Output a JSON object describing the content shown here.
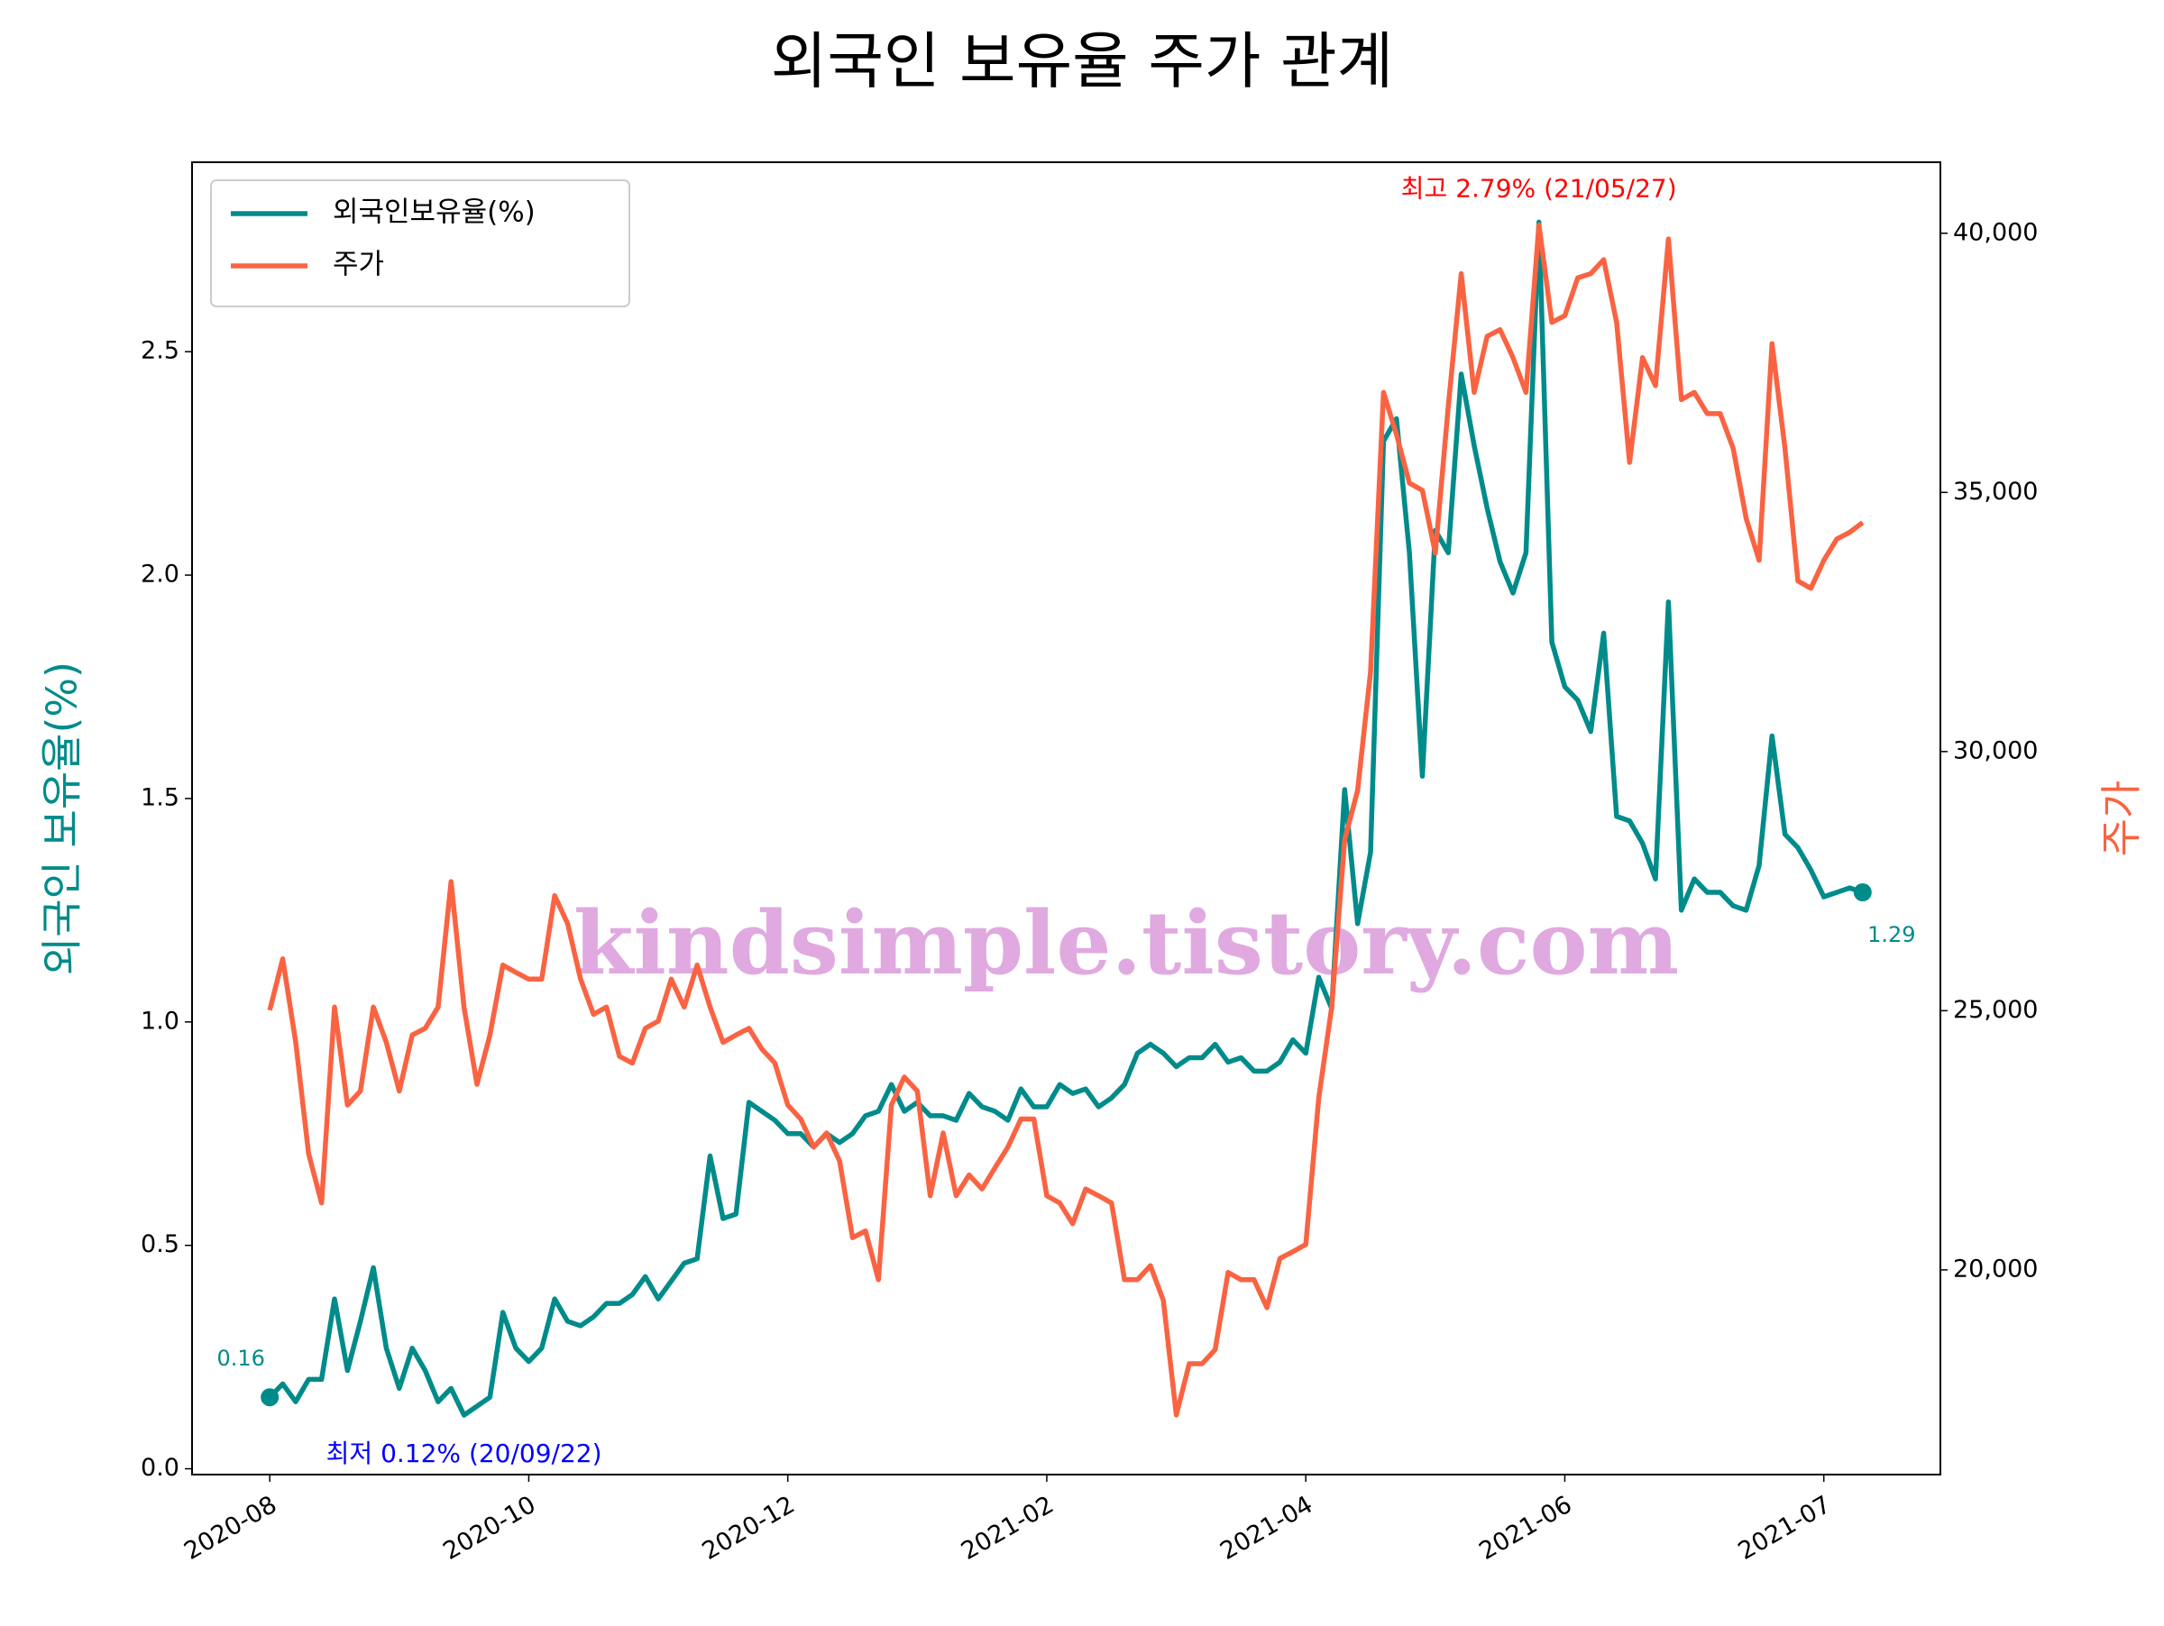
{
  "chart_data": {
    "type": "line",
    "title": "외국인 보유율 주가 관계",
    "ylabel": "외국인 보유율(%)",
    "y2label": "주가",
    "watermark": "kindsimple.tistory.com",
    "legend": "upper left",
    "grid": false,
    "categories": [
      "2020-08",
      null,
      null,
      null,
      null,
      null,
      null,
      null,
      null,
      null,
      null,
      null,
      null,
      null,
      null,
      null,
      null,
      null,
      null,
      null,
      "2020-10",
      null,
      null,
      null,
      null,
      null,
      null,
      null,
      null,
      null,
      null,
      null,
      null,
      null,
      null,
      null,
      null,
      null,
      null,
      null,
      "2020-12",
      null,
      null,
      null,
      null,
      null,
      null,
      null,
      null,
      null,
      null,
      null,
      null,
      null,
      null,
      null,
      null,
      null,
      null,
      null,
      "2021-02",
      null,
      null,
      null,
      null,
      null,
      null,
      null,
      null,
      null,
      null,
      null,
      null,
      null,
      null,
      null,
      null,
      null,
      null,
      null,
      "2021-04",
      null,
      null,
      null,
      null,
      null,
      null,
      null,
      null,
      null,
      null,
      null,
      null,
      null,
      null,
      null,
      null,
      null,
      null,
      null,
      "2021-06",
      null,
      null,
      null,
      null,
      null,
      null,
      null,
      null,
      null,
      null,
      null,
      null,
      null,
      null,
      null,
      null,
      null,
      null,
      null,
      "2021-07",
      null,
      null,
      null
    ],
    "ylim": [
      -0.013,
      2.924
    ],
    "yticks": [
      {
        "value": 0,
        "label": "0.0"
      },
      0.5,
      {
        "value": 1,
        "label": "1.0"
      },
      1.5,
      {
        "value": 2,
        "label": "2.0"
      },
      2.5
    ],
    "y2lim": [
      16050,
      41370
    ],
    "y2ticks": [
      {
        "value": 20000,
        "label": "20,000"
      },
      {
        "value": 25000,
        "label": "25,000"
      },
      {
        "value": 30000,
        "label": "30,000"
      },
      {
        "value": 35000,
        "label": "35,000"
      },
      {
        "value": 40000,
        "label": "40,000"
      }
    ],
    "series": [
      {
        "name": "외국인보유율(%)",
        "color": "#008b8b",
        "axis": "y",
        "values": [
          0.16,
          0.19,
          0.15,
          0.2,
          0.2,
          0.38,
          0.22,
          0.33,
          0.45,
          0.27,
          0.18,
          0.27,
          0.22,
          0.15,
          0.18,
          0.12,
          0.14,
          0.16,
          0.35,
          0.27,
          0.24,
          0.27,
          0.38,
          0.33,
          0.32,
          0.34,
          0.37,
          0.37,
          0.39,
          0.43,
          0.38,
          0.42,
          0.46,
          0.47,
          0.7,
          0.56,
          0.57,
          0.82,
          0.8,
          0.78,
          0.75,
          0.75,
          0.72,
          0.75,
          0.73,
          0.75,
          0.79,
          0.8,
          0.86,
          0.8,
          0.82,
          0.79,
          0.79,
          0.78,
          0.84,
          0.81,
          0.8,
          0.78,
          0.85,
          0.81,
          0.81,
          0.86,
          0.84,
          0.85,
          0.81,
          0.83,
          0.86,
          0.93,
          0.95,
          0.93,
          0.9,
          0.92,
          0.92,
          0.95,
          0.91,
          0.92,
          0.89,
          0.89,
          0.91,
          0.96,
          0.93,
          1.1,
          1.03,
          1.52,
          1.22,
          1.38,
          2.3,
          2.35,
          2.05,
          1.55,
          2.1,
          2.05,
          2.45,
          2.29,
          2.15,
          2.03,
          1.96,
          2.05,
          2.79,
          1.85,
          1.75,
          1.72,
          1.65,
          1.87,
          1.46,
          1.45,
          1.4,
          1.32,
          1.94,
          1.25,
          1.32,
          1.29,
          1.29,
          1.26,
          1.25,
          1.35,
          1.64,
          1.42,
          1.39,
          1.34,
          1.28,
          1.29,
          1.3,
          1.29
        ]
      },
      {
        "name": "주가",
        "color": "#fa6342",
        "axis": "y2",
        "values": [
          25010,
          26000,
          24400,
          22240,
          21290,
          25070,
          23180,
          23450,
          25070,
          24390,
          23450,
          24530,
          24660,
          25070,
          27490,
          25070,
          23580,
          24530,
          25880,
          25740,
          25610,
          25610,
          27220,
          26680,
          25610,
          24930,
          25070,
          24120,
          23990,
          24660,
          24800,
          25610,
          25070,
          25880,
          25070,
          24390,
          24530,
          24660,
          24260,
          23990,
          23180,
          22910,
          22370,
          22640,
          22100,
          20620,
          20750,
          19810,
          23180,
          23720,
          23450,
          21430,
          22640,
          21430,
          21830,
          21560,
          21970,
          22370,
          22910,
          22910,
          21430,
          21290,
          20890,
          21560,
          21430,
          21290,
          19810,
          19810,
          20080,
          19410,
          17200,
          18190,
          18190,
          18460,
          19950,
          19810,
          19810,
          19270,
          20220,
          20350,
          20490,
          23320,
          25070,
          28300,
          29250,
          31540,
          36930,
          36120,
          35180,
          35040,
          33830,
          36660,
          39220,
          36930,
          38010,
          38140,
          37600,
          36930,
          40160,
          38280,
          38410,
          39140,
          39220,
          39490,
          38280,
          35580,
          37600,
          37060,
          39890,
          36790,
          36930,
          36520,
          36520,
          35850,
          34500,
          33690,
          37870,
          35850,
          33290,
          33150,
          33690,
          34100,
          34230,
          34420
        ]
      }
    ],
    "annotations": [
      {
        "text": "최고 2.79% (21/05/27)",
        "color": "#ff0000",
        "at": "max"
      },
      {
        "text": "최저 0.12% (20/09/22)",
        "color": "#0000ff",
        "at": "min"
      }
    ]
  }
}
